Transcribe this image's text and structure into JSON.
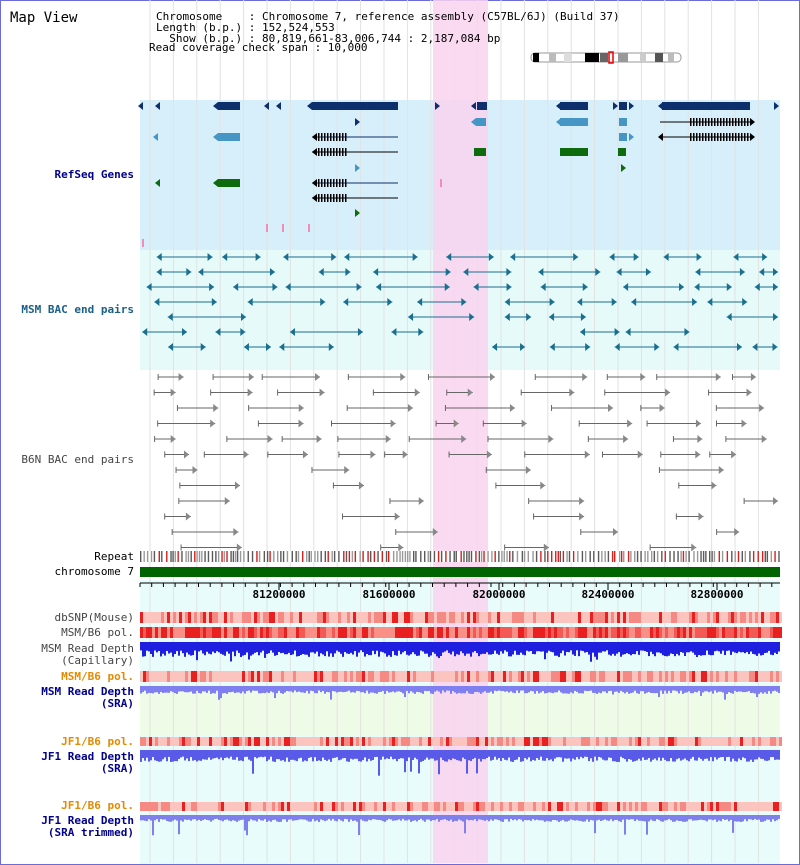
{
  "title": "Map View",
  "header": {
    "lines": [
      "Chromosome    : Chromosome 7, reference assembly (C57BL/6J) (Build 37)",
      "Length (b.p.) : 152,524,553",
      "  Show (b.p.) : 80,819,661-83,006,744 : 2,187,084 bp",
      "Read coverage check span : 10,000"
    ]
  },
  "tracks": {
    "refseq": "RefSeq Genes",
    "msm_bac": "MSM BAC end pairs",
    "b6n_bac": "B6N BAC end pairs",
    "repeat": "Repeat",
    "chromosome": "chromosome 7",
    "dbsnp": "dbSNP(Mouse)",
    "msm_b6_pol": "MSM/B6 pol.",
    "msm_depth_cap_1": "MSM Read Depth",
    "msm_depth_cap_2": "(Capillary)",
    "msm_b6_pol_2": "MSM/B6 pol.",
    "msm_depth_sra_1": "MSM Read Depth",
    "msm_depth_sra_2": "(SRA)",
    "jf1_b6_pol": "JF1/B6 pol.",
    "jf1_depth_sra_1": "JF1 Read Depth",
    "jf1_depth_sra_2": "(SRA)",
    "jf1_b6_pol_2": "JF1/B6 pol.",
    "jf1_depth_trim_1": "JF1 Read Depth",
    "jf1_depth_trim_2": "(SRA trimmed)"
  },
  "axis_ticks": [
    "81200000",
    "81600000",
    "82000000",
    "82400000",
    "82800000"
  ],
  "colors": {
    "refseq_bg": "#d7effa",
    "msm_bac_bg": "#e6fafa",
    "highlight": "#f9d3ee",
    "gene_dark": "#0d2f6b",
    "gene_mid": "#4596c4",
    "gene_green": "#0d6b0d",
    "bac_teal": "#1a6f8f",
    "bac_gray": "#666666",
    "snp_red": "#e8322e",
    "depth_blue": "#1f1fe0",
    "depth_light": "#7f7ff0",
    "chromosome_green": "#006400"
  }
}
